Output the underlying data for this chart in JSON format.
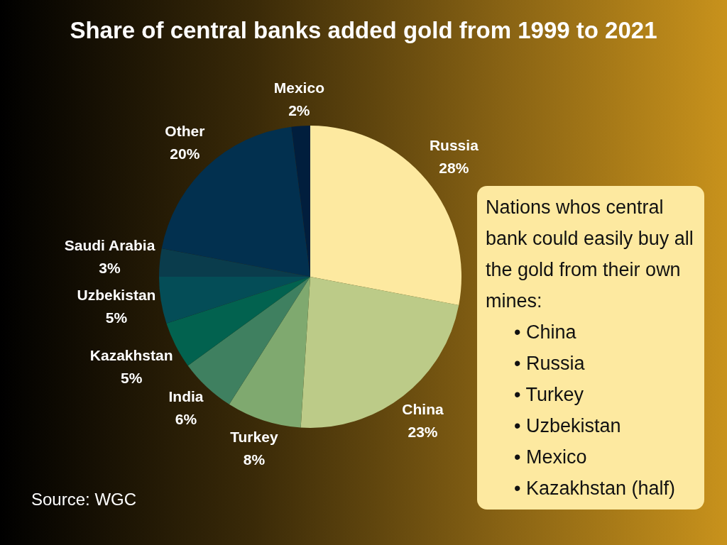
{
  "chart_data": {
    "type": "pie",
    "title": "Share of central banks added gold from 1999 to 2021",
    "categories": [
      "Russia",
      "China",
      "Turkey",
      "India",
      "Kazakhstan",
      "Uzbekistan",
      "Saudi Arabia",
      "Other",
      "Mexico"
    ],
    "values": [
      28,
      23,
      8,
      6,
      5,
      5,
      3,
      20,
      2
    ],
    "value_labels": [
      "28%",
      "23%",
      "8%",
      "6%",
      "5%",
      "5%",
      "3%",
      "20%",
      "2%"
    ],
    "colors": [
      "#fde9a0",
      "#bccb88",
      "#7fa96f",
      "#3f8060",
      "#02624f",
      "#044d57",
      "#0a3c4c",
      "#02304f",
      "#011e3d"
    ],
    "legend": false,
    "annotations": [
      "Nations whos central bank could easily buy all the gold from their own mines:",
      "• China",
      "• Russia",
      "• Turkey",
      "• Uzbekistan",
      "• Mexico",
      "• Kazakhstan (half)",
      "Source: WGC"
    ]
  }
}
